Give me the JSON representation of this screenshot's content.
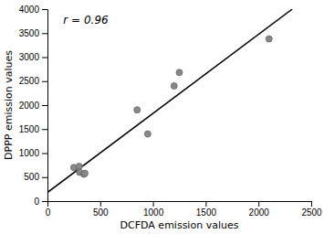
{
  "chart_data": {
    "type": "scatter",
    "xlabel": "DCFDA emission values",
    "ylabel": "DPPP emission values",
    "xlim": [
      0,
      2500
    ],
    "ylim": [
      0,
      4000
    ],
    "xticks": [
      0,
      500,
      1000,
      1500,
      2000,
      2500
    ],
    "yticks": [
      0,
      500,
      1000,
      1500,
      2000,
      2500,
      3000,
      3500,
      4000
    ],
    "grid": false,
    "annotation": "r = 0.96",
    "series": [
      {
        "type": "scatter",
        "color": "#888888",
        "x": [
          250,
          300,
          305,
          345,
          355,
          850,
          950,
          1200,
          1250,
          2100
        ],
        "values": [
          700,
          725,
          600,
          560,
          580,
          1900,
          1400,
          2400,
          2680,
          3380
        ]
      },
      {
        "type": "line",
        "color": "#000000",
        "x": [
          0,
          2320
        ],
        "values": [
          180,
          4000
        ]
      }
    ]
  }
}
